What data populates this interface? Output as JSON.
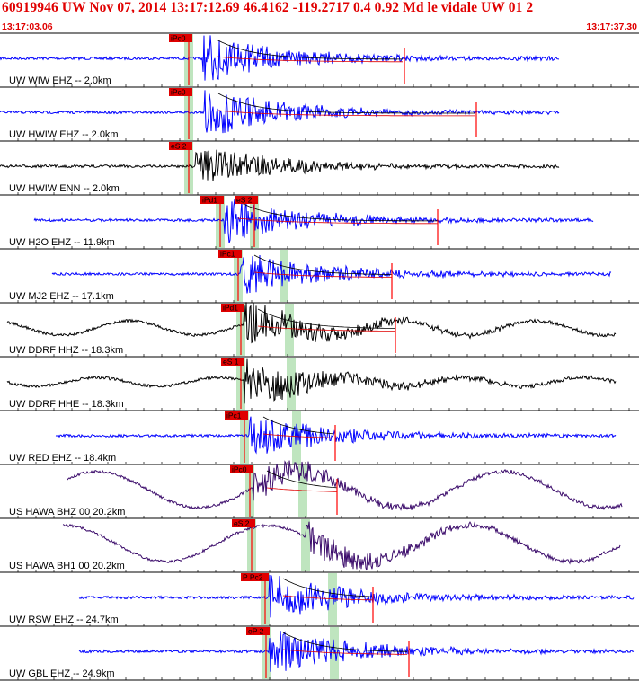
{
  "header": {
    "title": "60919946 UW Nov 07, 2014 13:17:12.69    46.4162 -119.2717  0.4 0.92 Md le vidale UW 01   2",
    "start_time": "13:17:03.06",
    "end_time": "13:17:37.30"
  },
  "colors": {
    "header_text": "#e00000",
    "pick_box": "#e00000",
    "pick_line": "#ff0000",
    "window_band": "#bfe5bf",
    "trace_blue": "#0000ff",
    "trace_black": "#000000",
    "trace_purple": "#3a0a6a",
    "coda_fit": "#e00000"
  },
  "channels": [
    {
      "label": "UW WIW EHZ -- 2.0km",
      "pick": "iPc0",
      "color": "blue",
      "start": 0,
      "end": 622,
      "onset": 226,
      "amp": 1.0,
      "wave": 0,
      "coda": 450,
      "band": 210
    },
    {
      "label": "UW HWIW EHZ -- 2.0km",
      "pick": "iPc0",
      "color": "blue",
      "start": 0,
      "end": 622,
      "onset": 228,
      "amp": 1.0,
      "wave": 0,
      "coda": 530,
      "band": 210
    },
    {
      "label": "UW HWIW ENN -- 2.0km",
      "pick": "eS 2",
      "color": "black",
      "start": 0,
      "end": 622,
      "onset": 218,
      "amp": 0.85,
      "wave": 0,
      "coda": null,
      "band": 210
    },
    {
      "label": "UW H2O EHZ -- 11.9km",
      "pick": "iPd1",
      "pick2": "eS 2",
      "color": "blue",
      "start": 38,
      "end": 660,
      "onset": 250,
      "amp": 0.9,
      "wave": 0,
      "coda": 487,
      "band": 245,
      "band2": 283
    },
    {
      "label": "UW MJ2 EHZ -- 17.1km",
      "pick": "iPc1",
      "color": "blue",
      "start": 58,
      "end": 680,
      "onset": 268,
      "amp": 0.95,
      "wave": 0,
      "coda": 436,
      "band": 265,
      "band2": 316
    },
    {
      "label": "UW DDRF HHZ -- 18.3km",
      "pick": "iPd1",
      "color": "black",
      "start": 8,
      "end": 685,
      "onset": 272,
      "amp": 0.9,
      "wave": 1,
      "coda": 440,
      "band": 268,
      "band2": 322
    },
    {
      "label": "UW DDRF HHE -- 18.3km",
      "pick": "eS 1",
      "color": "black",
      "start": 8,
      "end": 685,
      "onset": 272,
      "amp": 0.9,
      "wave": 0.6,
      "coda": null,
      "band": 268,
      "band2": 324
    },
    {
      "label": "UW RED EHZ -- 18.4km",
      "pick": "iPc1",
      "color": "blue",
      "start": 62,
      "end": 685,
      "onset": 278,
      "amp": 0.85,
      "wave": 0,
      "coda": 373,
      "band": 272,
      "band2": 330
    },
    {
      "label": "US HAWA BHZ 00 20.2km",
      "pick": "iPc0",
      "color": "purple",
      "start": 75,
      "end": 692,
      "onset": 282,
      "amp": 0.7,
      "wave": 3,
      "coda": 375,
      "band": 278,
      "band2": 337
    },
    {
      "label": "US HAWA BH1 00 20.2km",
      "pick": "eS 2",
      "color": "purple",
      "start": 70,
      "end": 690,
      "onset": 340,
      "amp": 0.7,
      "wave": 3,
      "coda": null,
      "band": 280,
      "band2": 340
    },
    {
      "label": "UW RSW EHZ -- 24.7km",
      "pick": "P Pc2",
      "color": "blue",
      "start": 88,
      "end": 705,
      "onset": 300,
      "amp": 1.0,
      "wave": 0,
      "coda": 415,
      "band": 295,
      "band2": 370
    },
    {
      "label": "UW GBL EHZ -- 24.9km",
      "pick": "eP 2",
      "color": "blue",
      "start": 88,
      "end": 705,
      "onset": 300,
      "amp": 1.0,
      "wave": 0,
      "coda": 455,
      "band": 296,
      "band2": 372
    }
  ]
}
